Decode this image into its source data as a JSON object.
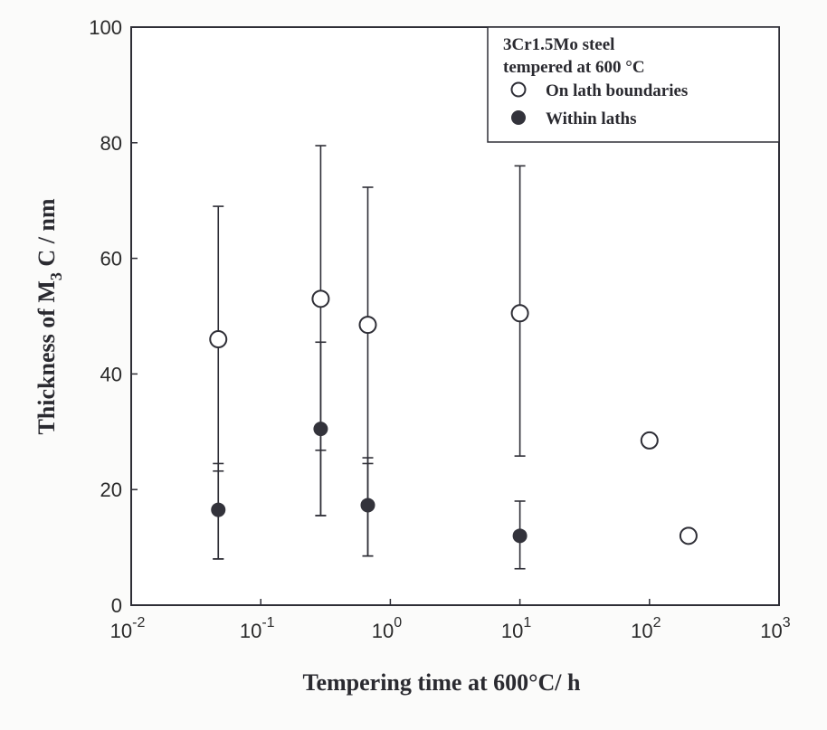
{
  "chart_data": {
    "type": "scatter",
    "title": "",
    "xlabel": "Tempering time at 600°C/ h",
    "ylabel": "Thickness of M3C / nm",
    "xscale": "log",
    "xlim": [
      0.01,
      1000
    ],
    "ylim": [
      0,
      100
    ],
    "x_ticks": [
      "10^-2",
      "10^-1",
      "10^0",
      "10^1",
      "10^2",
      "10^3"
    ],
    "y_ticks": [
      0,
      20,
      40,
      60,
      80,
      100
    ],
    "grid": false,
    "legend_position": "upper right",
    "legend_title": [
      "3Cr1.5Mo  steel",
      "tempered  at  600 °C"
    ],
    "series": [
      {
        "name": "On lath boundaries",
        "marker": "open-circle",
        "points": [
          {
            "x": 0.047,
            "y": 46,
            "err_low": 8,
            "err_high": 69
          },
          {
            "x": 0.29,
            "y": 53,
            "err_low": 15.5,
            "err_high": 79.5
          },
          {
            "x": 0.67,
            "y": 48.5,
            "err_low": 8.5,
            "err_high": 72.3
          },
          {
            "x": 10,
            "y": 50.5,
            "err_low": 25.8,
            "err_high": 76
          },
          {
            "x": 100,
            "y": 28.5
          },
          {
            "x": 200,
            "y": 12
          }
        ]
      },
      {
        "name": "Within laths",
        "marker": "filled-circle",
        "points": [
          {
            "x": 0.047,
            "y": 16.5,
            "err_low": 8,
            "err_high": 24.5,
            "inner_tick": 23.2
          },
          {
            "x": 0.29,
            "y": 30.5,
            "err_low": 15.5,
            "err_high": 45.5,
            "inner_tick": 26.8
          },
          {
            "x": 0.67,
            "y": 17.3,
            "err_low": 8.5,
            "err_high": 25.5,
            "inner_tick": 24.5
          },
          {
            "x": 10,
            "y": 12,
            "err_low": 6.3,
            "err_high": 18
          }
        ]
      }
    ]
  },
  "labels": {
    "y_title_pre": "Thickness of M",
    "y_title_sub": "3",
    "y_title_post": " C / nm",
    "x_title": "Tempering time at 600°C/ h",
    "legend_line1": "3Cr1.5Mo  steel",
    "legend_line2": "tempered  at  600 °C",
    "legend_item1": "On lath boundaries",
    "legend_item2": "Within laths"
  },
  "colors": {
    "ink": "#2e2e36",
    "background": "#fbfbfa",
    "filled_marker": "#33333b"
  }
}
